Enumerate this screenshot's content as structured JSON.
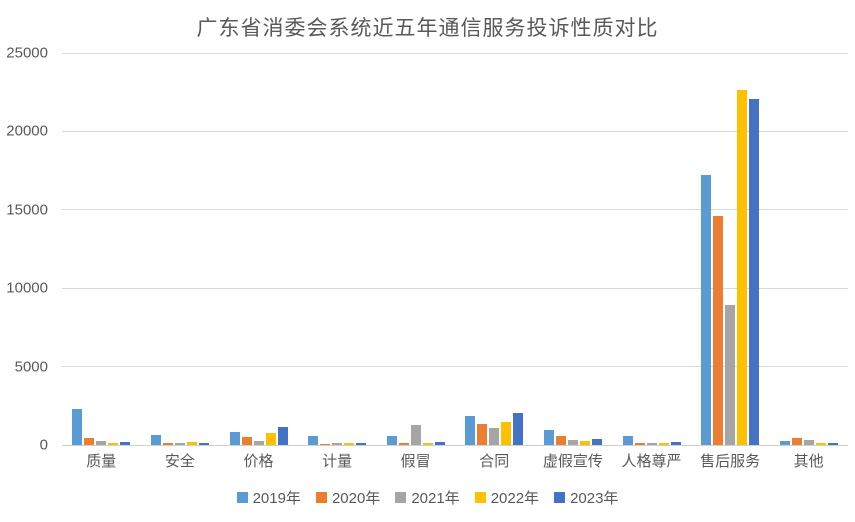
{
  "chart_data": {
    "type": "bar",
    "title": "广东省消委会系统近五年通信服务投诉性质对比",
    "categories": [
      "质量",
      "安全",
      "价格",
      "计量",
      "假冒",
      "合同",
      "虚假宣传",
      "人格尊严",
      "售后服务",
      "其他"
    ],
    "series": [
      {
        "name": "2019年",
        "color": "#5B9BD5",
        "values": [
          2280,
          650,
          800,
          590,
          600,
          1820,
          970,
          560,
          17200,
          280
        ]
      },
      {
        "name": "2020年",
        "color": "#ED7D31",
        "values": [
          450,
          110,
          480,
          60,
          160,
          1350,
          600,
          120,
          14600,
          440
        ]
      },
      {
        "name": "2021年",
        "color": "#A5A5A5",
        "values": [
          260,
          130,
          270,
          160,
          1300,
          1100,
          340,
          150,
          8950,
          300
        ]
      },
      {
        "name": "2022年",
        "color": "#FFC000",
        "values": [
          130,
          170,
          760,
          130,
          110,
          1480,
          230,
          160,
          22650,
          130
        ]
      },
      {
        "name": "2023年",
        "color": "#4472C4",
        "values": [
          200,
          130,
          1180,
          160,
          170,
          2020,
          380,
          190,
          22050,
          160
        ]
      }
    ],
    "y_axis": {
      "min": 0,
      "max": 25000,
      "step": 5000,
      "ticks": [
        "0",
        "5000",
        "10000",
        "15000",
        "20000",
        "25000"
      ]
    },
    "x_axis_label": "",
    "y_axis_label": "",
    "grid": true,
    "legend_position": "bottom",
    "colors": {
      "text": "#595959",
      "gridline": "#D9D9D9",
      "background": "#FFFFFF"
    }
  }
}
